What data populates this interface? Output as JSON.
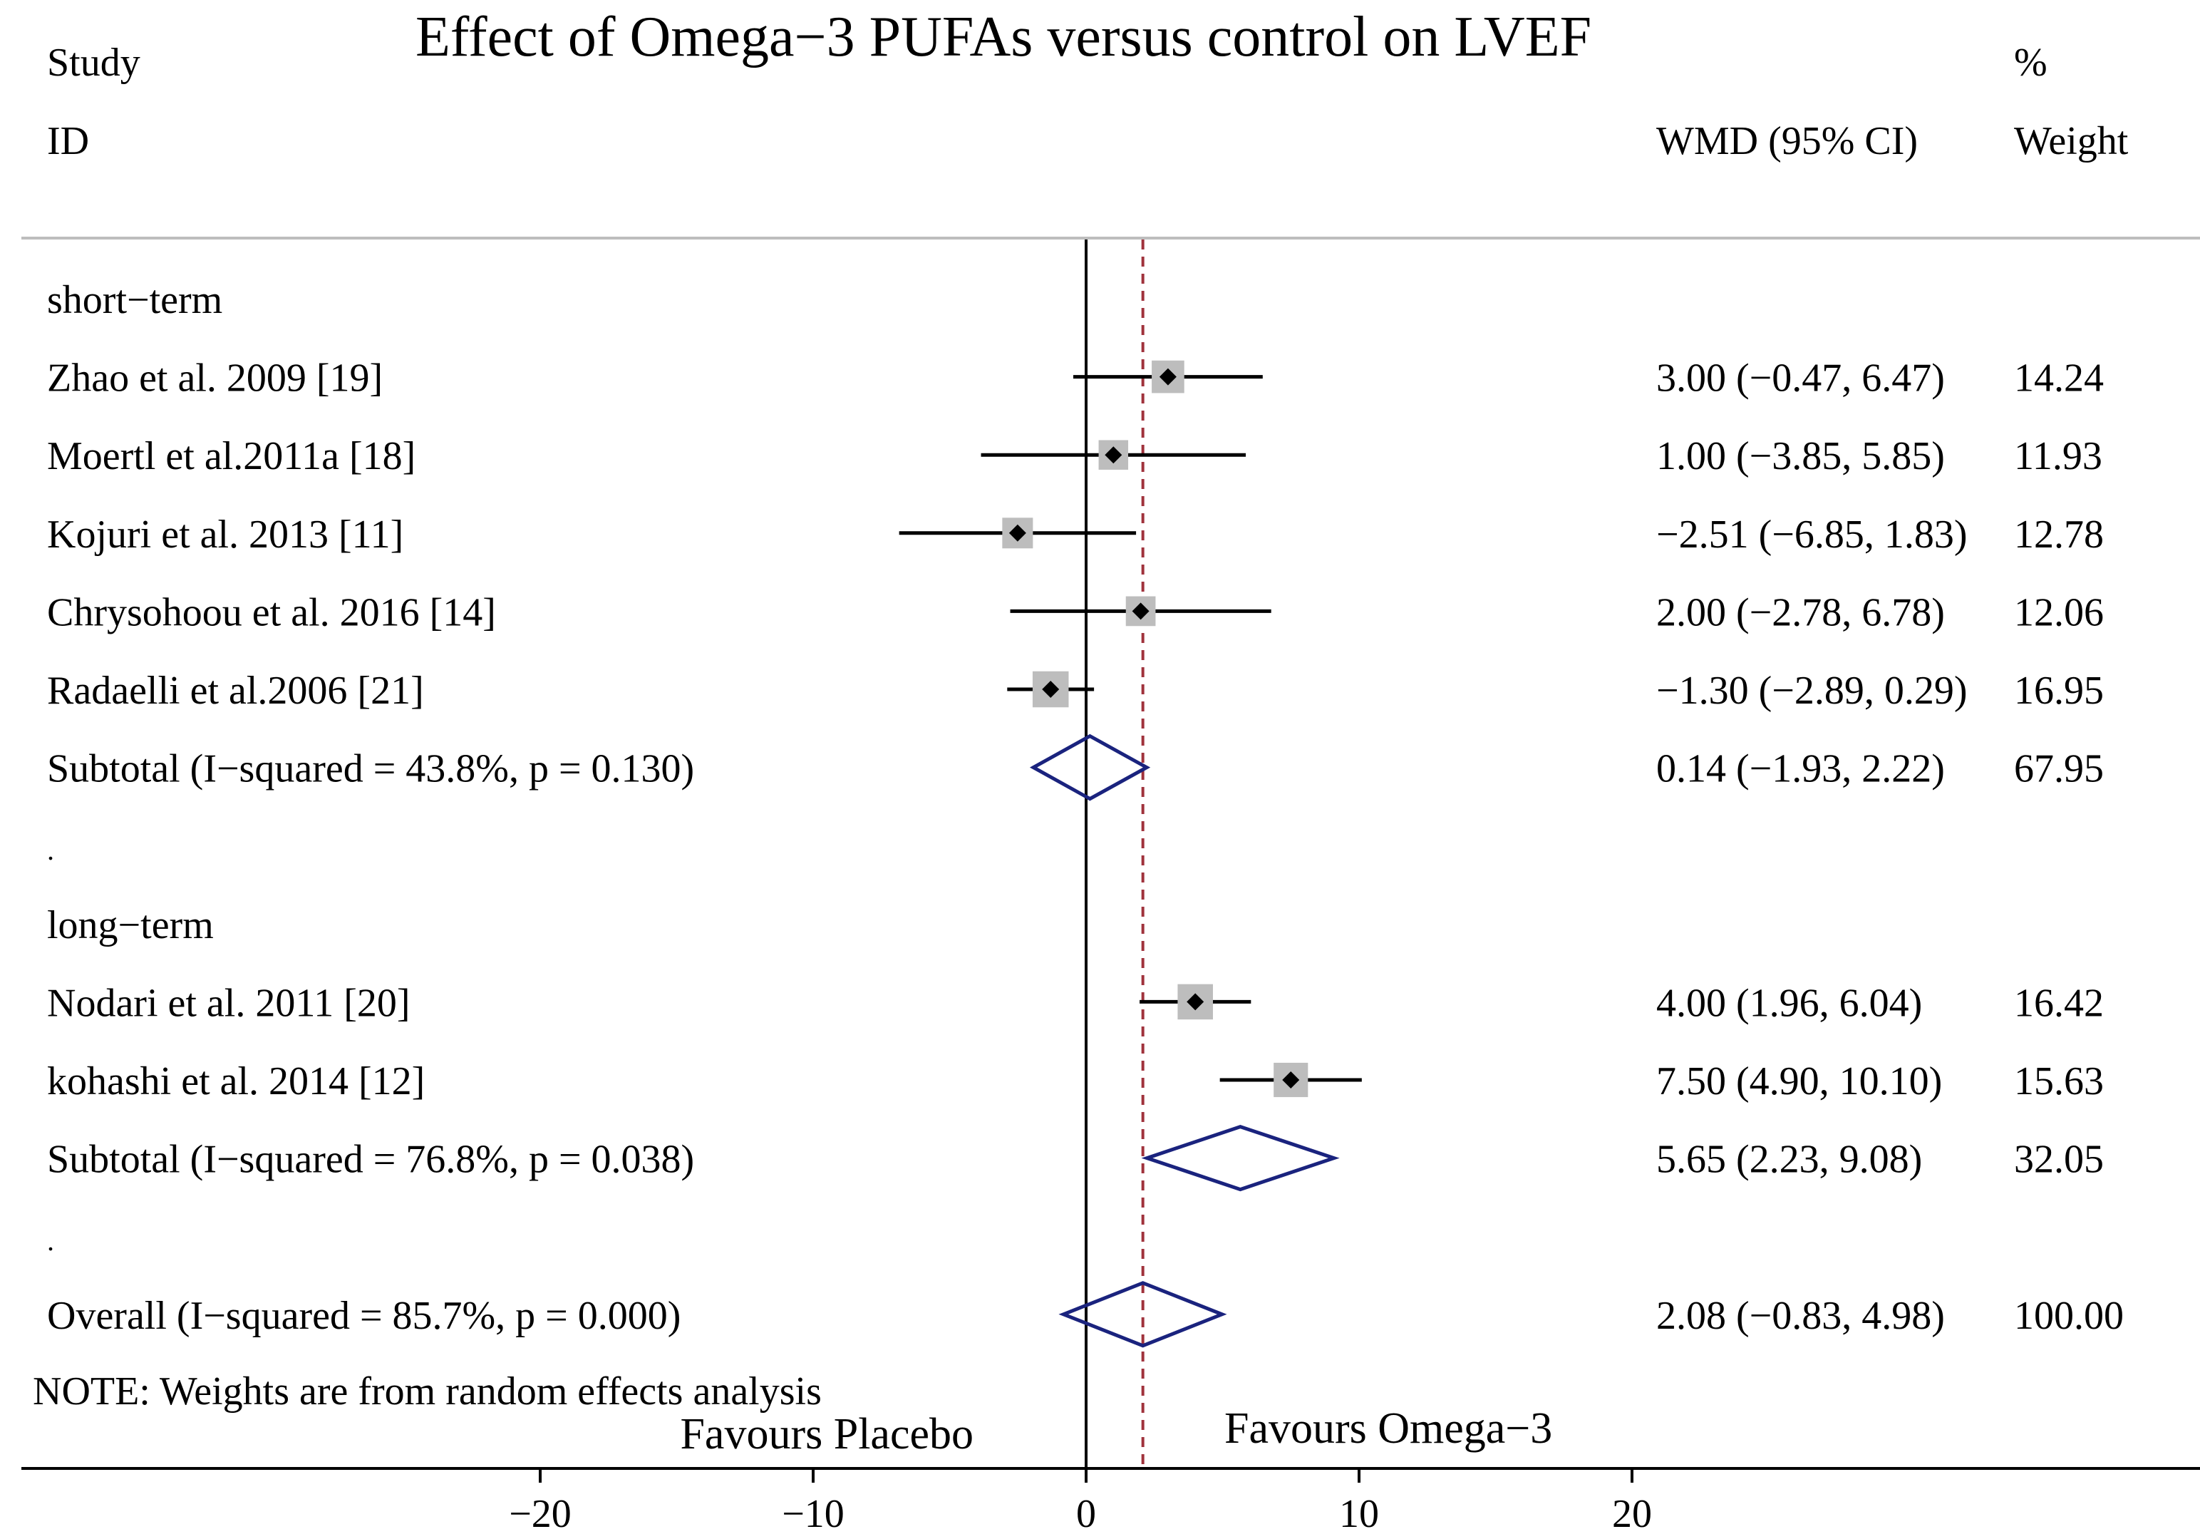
{
  "chart_data": {
    "type": "forest",
    "title": "Effect of Omega−3 PUFAs versus control on LVEF",
    "header": {
      "study_line1": "Study",
      "study_line2": "ID",
      "ci_label": "WMD (95% CI)",
      "weight_line1": "%",
      "weight_line2": "Weight"
    },
    "xaxis": {
      "ticks": [
        -20,
        -10,
        0,
        10,
        20
      ],
      "tick_labels": [
        "−20",
        "−10",
        "0",
        "10",
        "20"
      ]
    },
    "null_line": 0,
    "overall_line": 2.08,
    "groups": [
      {
        "label": "short−term",
        "studies": [
          {
            "study": "Zhao et al. 2009 [19]",
            "est": 3.0,
            "lo": -0.47,
            "hi": 6.47,
            "ci_text": "3.00 (−0.47, 6.47)",
            "weight": "14.24"
          },
          {
            "study": "Moertl et al.2011a [18]",
            "est": 1.0,
            "lo": -3.85,
            "hi": 5.85,
            "ci_text": "1.00 (−3.85, 5.85)",
            "weight": "11.93"
          },
          {
            "study": "Kojuri et al. 2013 [11]",
            "est": -2.51,
            "lo": -6.85,
            "hi": 1.83,
            "ci_text": "−2.51 (−6.85, 1.83)",
            "weight": "12.78"
          },
          {
            "study": "Chrysohoou et al. 2016 [14]",
            "est": 2.0,
            "lo": -2.78,
            "hi": 6.78,
            "ci_text": "2.00 (−2.78, 6.78)",
            "weight": "12.06"
          },
          {
            "study": "Radaelli et al.2006 [21]",
            "est": -1.3,
            "lo": -2.89,
            "hi": 0.29,
            "ci_text": "−1.30 (−2.89, 0.29)",
            "weight": "16.95"
          }
        ],
        "subtotal": {
          "label": "Subtotal  (I−squared = 43.8%, p = 0.130)",
          "est": 0.14,
          "lo": -1.93,
          "hi": 2.22,
          "ci_text": "0.14 (−1.93, 2.22)",
          "weight": "67.95"
        }
      },
      {
        "label": "long−term",
        "studies": [
          {
            "study": "Nodari et al. 2011 [20]",
            "est": 4.0,
            "lo": 1.96,
            "hi": 6.04,
            "ci_text": "4.00 (1.96, 6.04)",
            "weight": "16.42"
          },
          {
            "study": "kohashi et al. 2014 [12]",
            "est": 7.5,
            "lo": 4.9,
            "hi": 10.1,
            "ci_text": "7.50 (4.90, 10.10)",
            "weight": "15.63"
          }
        ],
        "subtotal": {
          "label": "Subtotal  (I−squared = 76.8%, p = 0.038)",
          "est": 5.65,
          "lo": 2.23,
          "hi": 9.08,
          "ci_text": "5.65 (2.23, 9.08)",
          "weight": "32.05"
        }
      }
    ],
    "overall": {
      "label": "Overall  (I−squared = 85.7%, p = 0.000)",
      "est": 2.08,
      "lo": -0.83,
      "hi": 4.98,
      "ci_text": "2.08 (−0.83, 4.98)",
      "weight": "100.00"
    },
    "separator": ".",
    "note": "NOTE: Weights are from random effects analysis",
    "favours_left": "Favours Placebo",
    "favours_right": "Favours Omega−3",
    "colors": {
      "diamond": "#1a237e",
      "overall_line": "#a0323c",
      "weight_box": "#bdbdbd",
      "ink": "#000000",
      "header_rule": "#bdbdbd"
    }
  }
}
